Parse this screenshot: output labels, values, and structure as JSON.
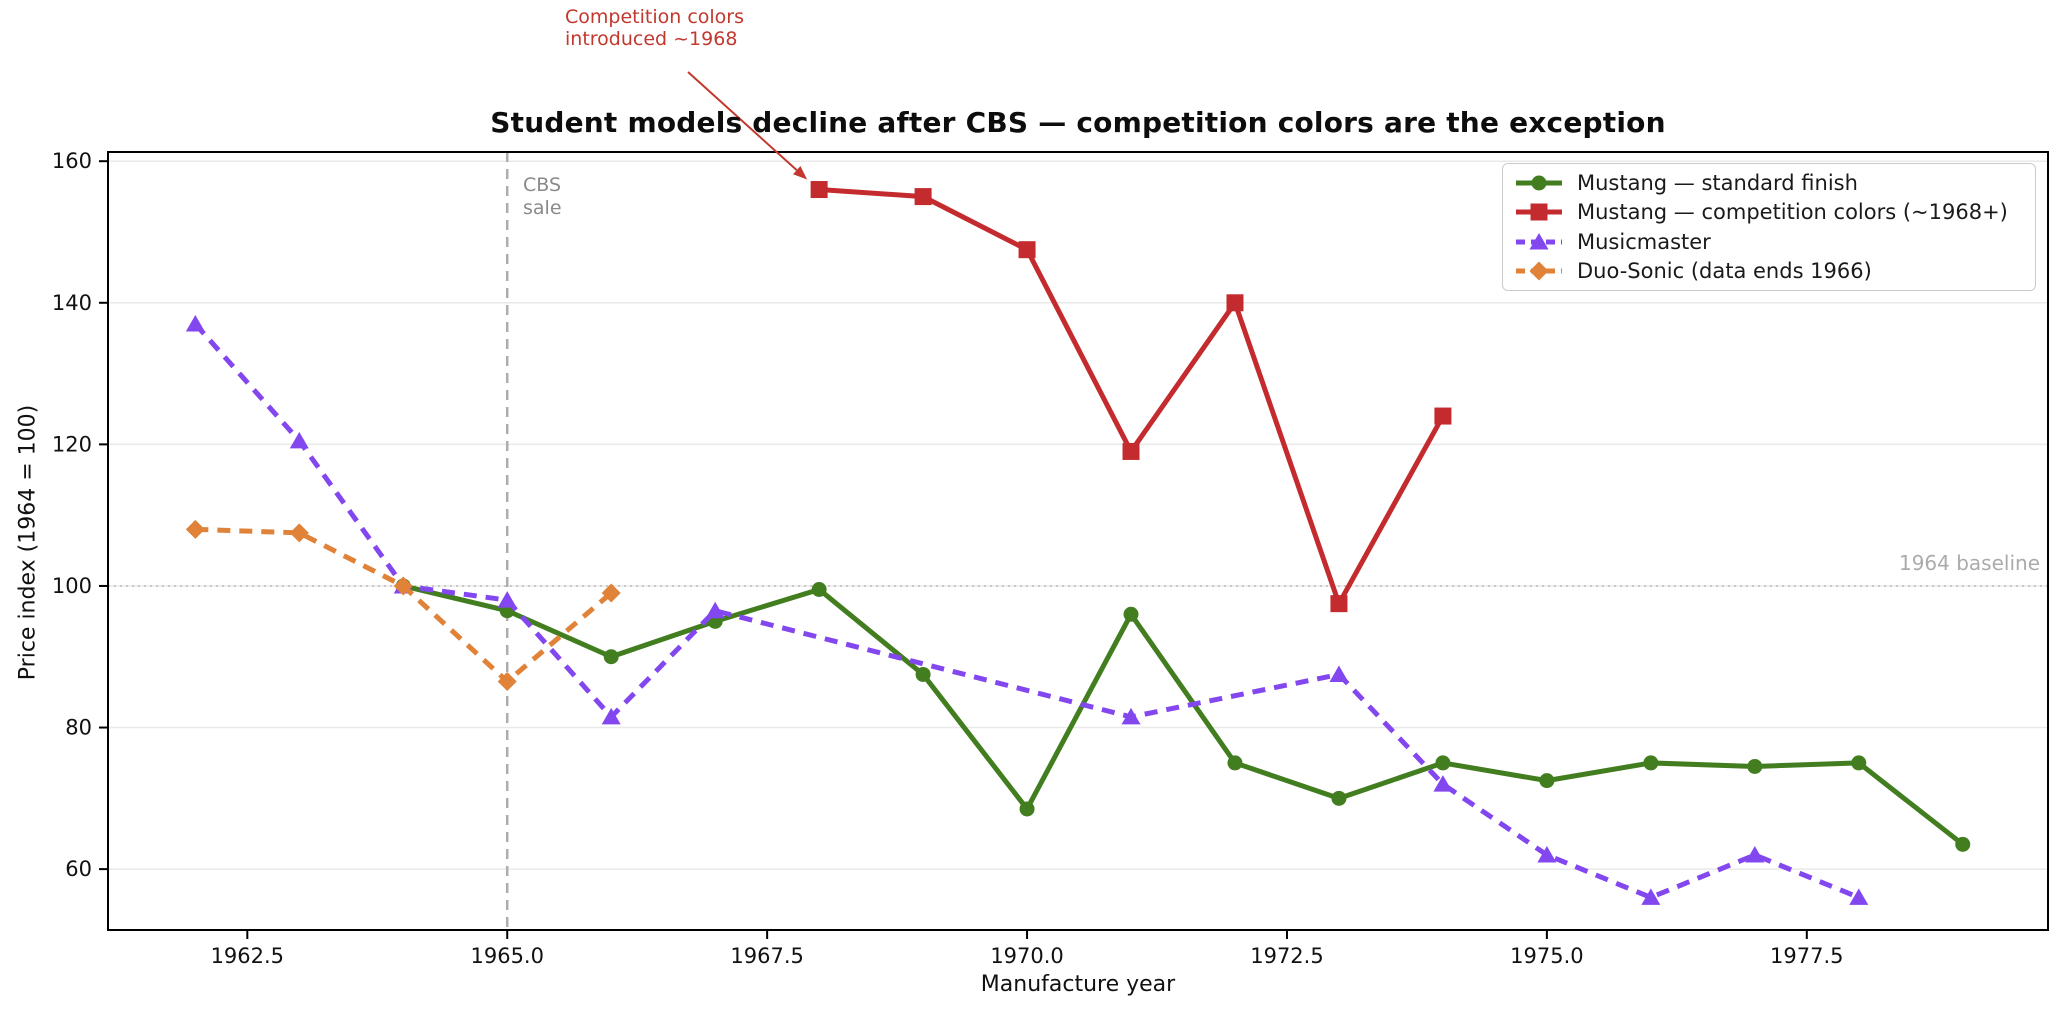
{
  "title": "Student models decline after CBS — competition colors are the exception",
  "annotations": {
    "competition": {
      "line1": "Competition colors",
      "line2": "introduced ~1968",
      "color": "#c2382e",
      "points_to": {
        "x": 1968,
        "y": 156
      }
    },
    "cbs": {
      "x": 1965,
      "line1": "CBS",
      "line2": "sale",
      "color": "#8a8a8a"
    },
    "baseline": {
      "y": 100,
      "label": "1964 baseline",
      "color": "#ababab"
    }
  },
  "chart_data": {
    "type": "line",
    "xlabel": "Manufacture year",
    "ylabel": "Price index (1964 = 100)",
    "xlim": [
      1961.16,
      1979.82
    ],
    "ylim": [
      51.4,
      161.3
    ],
    "x_ticks": [
      1962.5,
      1965.0,
      1967.5,
      1970.0,
      1972.5,
      1975.0,
      1977.5
    ],
    "x_tick_labels": [
      "1962.5",
      "1965.0",
      "1967.5",
      "1970.0",
      "1972.5",
      "1975.0",
      "1977.5"
    ],
    "y_ticks": [
      60,
      80,
      100,
      120,
      140,
      160
    ],
    "y_tick_labels": [
      "60",
      "80",
      "100",
      "120",
      "140",
      "160"
    ],
    "grid": "horizontal-only",
    "legend_position": "upper-right",
    "reference_lines": {
      "vertical_x": 1965,
      "horizontal_y": 100
    },
    "series": [
      {
        "name": "Mustang — standard finish",
        "color": "#427d20",
        "marker": "circle",
        "line_style": "solid",
        "x": [
          1964,
          1965,
          1966,
          1967,
          1968,
          1969,
          1970,
          1971,
          1972,
          1973,
          1974,
          1975,
          1976,
          1977,
          1978,
          1979
        ],
        "y": [
          100,
          96.5,
          90,
          95,
          99.5,
          87.5,
          68.5,
          96,
          75,
          70,
          75,
          72.5,
          75,
          74.5,
          75,
          63.5
        ]
      },
      {
        "name": "Mustang — competition colors (~1968+)",
        "color": "#c42b2e",
        "marker": "square",
        "line_style": "solid",
        "x": [
          1968,
          1969,
          1970,
          1971,
          1972,
          1973,
          1974
        ],
        "y": [
          156,
          155,
          147.5,
          119,
          140,
          97.5,
          124
        ]
      },
      {
        "name": "Musicmaster",
        "color": "#8347f0",
        "marker": "triangle",
        "line_style": "dashed",
        "x": [
          1962,
          1963,
          1964,
          1965,
          1966,
          1967,
          1971,
          1973,
          1974,
          1975,
          1976,
          1977,
          1978
        ],
        "y": [
          137,
          120.5,
          100,
          98,
          81.5,
          96.5,
          81.5,
          87.5,
          72,
          62,
          56,
          62,
          56
        ]
      },
      {
        "name": "Duo-Sonic (data ends 1966)",
        "color": "#e08238",
        "marker": "diamond",
        "line_style": "dashed",
        "x": [
          1962,
          1963,
          1964,
          1965,
          1966
        ],
        "y": [
          108,
          107.5,
          100,
          86.5,
          99
        ]
      }
    ]
  },
  "legend": {
    "items": [
      {
        "label": "Mustang — standard finish"
      },
      {
        "label": "Mustang — competition colors (~1968+)"
      },
      {
        "label": "Musicmaster"
      },
      {
        "label": "Duo-Sonic (data ends 1966)"
      }
    ]
  }
}
